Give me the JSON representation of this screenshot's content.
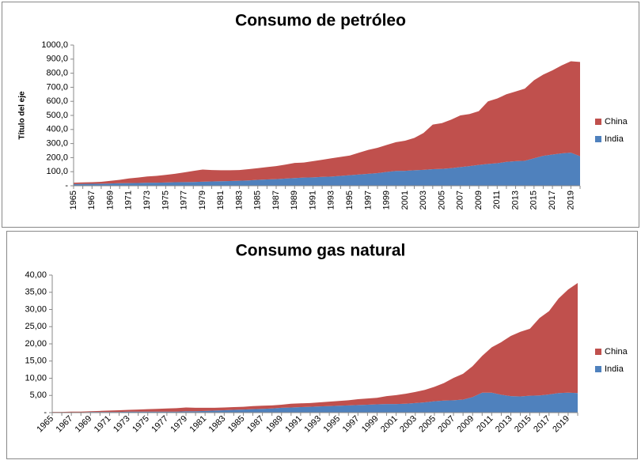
{
  "chart_data": [
    {
      "type": "area",
      "title": "Consumo de petróleo",
      "y_label": "Título del eje",
      "categories": [
        "1965",
        null,
        "1967",
        null,
        "1969",
        null,
        "1971",
        null,
        "1973",
        null,
        "1975",
        null,
        "1977",
        null,
        "1979",
        null,
        "1981",
        null,
        "1983",
        null,
        "1985",
        null,
        "1987",
        null,
        "1989",
        null,
        "1991",
        null,
        "1993",
        null,
        "1995",
        null,
        "1997",
        null,
        "1999",
        null,
        "2001",
        null,
        "2003",
        null,
        "2005",
        null,
        "2007",
        null,
        "2009",
        null,
        "2011",
        null,
        "2013",
        null,
        "2015",
        null,
        "2017",
        null,
        "2019",
        null
      ],
      "series": [
        {
          "name": "India",
          "color": "#4f81bd",
          "values": [
            12,
            13,
            14,
            15,
            16,
            18,
            19,
            20,
            22,
            22,
            23,
            25,
            26,
            27,
            29,
            31,
            32,
            34,
            36,
            38,
            42,
            45,
            47,
            51,
            55,
            58,
            60,
            63,
            65,
            70,
            75,
            80,
            85,
            90,
            98,
            105,
            106,
            110,
            113,
            118,
            120,
            125,
            133,
            140,
            148,
            155,
            160,
            170,
            175,
            178,
            195,
            213,
            222,
            230,
            235,
            210
          ]
        },
        {
          "name": "China",
          "color": "#c0504d",
          "values": [
            10,
            11,
            11,
            13,
            19,
            24,
            33,
            38,
            44,
            48,
            54,
            60,
            69,
            78,
            86,
            81,
            78,
            76,
            76,
            80,
            83,
            88,
            93,
            99,
            107,
            107,
            115,
            122,
            130,
            135,
            140,
            155,
            170,
            180,
            192,
            205,
            214,
            230,
            262,
            317,
            325,
            345,
            367,
            370,
            382,
            445,
            460,
            480,
            495,
            512,
            555,
            577,
            598,
            625,
            650,
            670
          ]
        }
      ],
      "ylim": [
        0,
        1000
      ],
      "yticks": [
        {
          "value": 0,
          "label": "-"
        },
        {
          "value": 100,
          "label": "100,0"
        },
        {
          "value": 200,
          "label": "200,0"
        },
        {
          "value": 300,
          "label": "300,0"
        },
        {
          "value": 400,
          "label": "400,0"
        },
        {
          "value": 500,
          "label": "500,0"
        },
        {
          "value": 600,
          "label": "600,0"
        },
        {
          "value": 700,
          "label": "700,0"
        },
        {
          "value": 800,
          "label": "800,0"
        },
        {
          "value": 900,
          "label": "900,0"
        },
        {
          "value": 1000,
          "label": "1000,0"
        }
      ]
    },
    {
      "type": "area",
      "title": "Consumo gas natural",
      "categories": [
        "1965",
        null,
        "1967",
        null,
        "1969",
        null,
        "1971",
        null,
        "1973",
        null,
        "1975",
        null,
        "1977",
        null,
        "1979",
        null,
        "1981",
        null,
        "1983",
        null,
        "1985",
        null,
        "1987",
        null,
        "1989",
        null,
        "1991",
        null,
        "1993",
        null,
        "1995",
        null,
        "1997",
        null,
        "1999",
        null,
        "2001",
        null,
        "2003",
        null,
        "2005",
        null,
        "2007",
        null,
        "2009",
        null,
        "2011",
        null,
        "2013",
        null,
        "2015",
        null,
        "2017",
        null,
        "2019",
        null
      ],
      "series": [
        {
          "name": "India",
          "color": "#4f81bd",
          "values": [
            0.1,
            0.1,
            0.1,
            0.1,
            0.2,
            0.2,
            0.2,
            0.2,
            0.3,
            0.3,
            0.3,
            0.3,
            0.3,
            0.3,
            0.4,
            0.4,
            0.5,
            0.6,
            0.7,
            0.8,
            0.9,
            1.0,
            1.1,
            1.2,
            1.4,
            1.5,
            1.6,
            1.7,
            1.8,
            1.9,
            2.0,
            2.1,
            2.2,
            2.3,
            2.4,
            2.5,
            2.5,
            2.6,
            2.8,
            3.0,
            3.3,
            3.5,
            3.6,
            3.8,
            4.5,
            5.8,
            5.8,
            5.2,
            4.8,
            4.7,
            4.9,
            5.0,
            5.3,
            5.7,
            5.8,
            5.7
          ]
        },
        {
          "name": "China",
          "color": "#c0504d",
          "values": [
            0.1,
            0.1,
            0.2,
            0.2,
            0.2,
            0.3,
            0.4,
            0.5,
            0.5,
            0.6,
            0.7,
            0.8,
            0.9,
            1.0,
            1.1,
            1.0,
            0.9,
            0.8,
            0.8,
            0.8,
            0.8,
            0.9,
            0.9,
            0.9,
            0.9,
            1.1,
            1.1,
            1.1,
            1.2,
            1.3,
            1.4,
            1.5,
            1.7,
            1.8,
            1.9,
            2.3,
            2.6,
            2.9,
            3.2,
            3.6,
            4.2,
            5.1,
            6.5,
            7.5,
            9.0,
            10.7,
            13.2,
            15.3,
            17.5,
            18.8,
            19.5,
            22.5,
            24.2,
            27.5,
            30.0,
            32.0
          ]
        }
      ],
      "ylim": [
        0,
        40
      ],
      "yticks": [
        {
          "value": 0,
          "label": "-"
        },
        {
          "value": 5,
          "label": "5,00"
        },
        {
          "value": 10,
          "label": "10,00"
        },
        {
          "value": 15,
          "label": "15,00"
        },
        {
          "value": 20,
          "label": "20,00"
        },
        {
          "value": 25,
          "label": "25,00"
        },
        {
          "value": 30,
          "label": "30,00"
        },
        {
          "value": 35,
          "label": "35,00"
        },
        {
          "value": 40,
          "label": "40,00"
        }
      ]
    }
  ]
}
